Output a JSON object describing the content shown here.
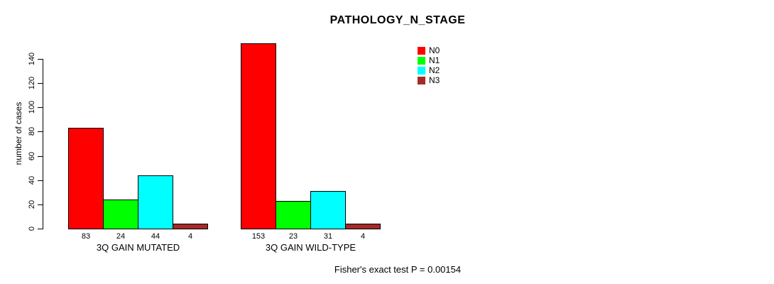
{
  "chart_data": {
    "type": "bar",
    "title": "PATHOLOGY_N_STAGE",
    "xlabel": "",
    "ylabel": "number of cases",
    "categories": [
      "3Q GAIN MUTATED",
      "3Q GAIN WILD-TYPE"
    ],
    "series": [
      {
        "name": "N0",
        "color": "#FF0000",
        "values": [
          83,
          153
        ]
      },
      {
        "name": "N1",
        "color": "#00FF00",
        "values": [
          24,
          23
        ]
      },
      {
        "name": "N2",
        "color": "#00FFFF",
        "values": [
          44,
          31
        ]
      },
      {
        "name": "N3",
        "color": "#A52A2A",
        "values": [
          4,
          4
        ]
      }
    ],
    "yticks": [
      0,
      20,
      40,
      60,
      80,
      100,
      120,
      140
    ],
    "ylim": [
      0,
      153
    ],
    "bar_value_labels": true,
    "grid": false,
    "legend_position": "top-right",
    "annotation": "Fisher's exact test P = 0.00154"
  }
}
